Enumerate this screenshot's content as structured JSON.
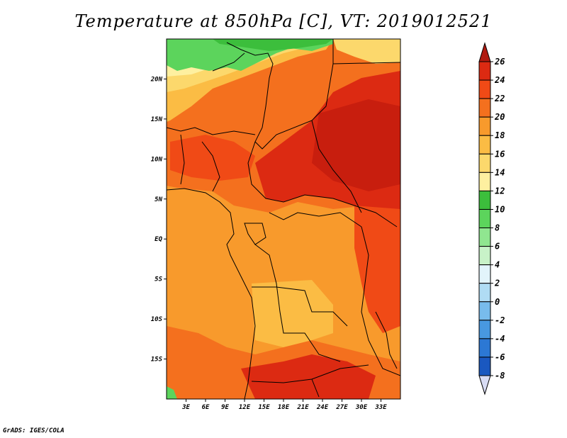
{
  "title": "Temperature at 850hPa [C], VT: 2019012521",
  "credit": "GrADS: IGES/COLA",
  "map": {
    "lon_range": [
      0,
      36
    ],
    "lat_range": [
      -20,
      25
    ],
    "lat_ticks": [
      {
        "value": 20,
        "label": "20N"
      },
      {
        "value": 15,
        "label": "15N"
      },
      {
        "value": 10,
        "label": "10N"
      },
      {
        "value": 5,
        "label": "5N"
      },
      {
        "value": 0,
        "label": "EQ"
      },
      {
        "value": -5,
        "label": "5S"
      },
      {
        "value": -10,
        "label": "10S"
      },
      {
        "value": -15,
        "label": "15S"
      }
    ],
    "lon_ticks": [
      {
        "value": 3,
        "label": "3E"
      },
      {
        "value": 6,
        "label": "6E"
      },
      {
        "value": 9,
        "label": "9E"
      },
      {
        "value": 12,
        "label": "12E"
      },
      {
        "value": 15,
        "label": "15E"
      },
      {
        "value": 18,
        "label": "18E"
      },
      {
        "value": 21,
        "label": "21E"
      },
      {
        "value": 24,
        "label": "24E"
      },
      {
        "value": 27,
        "label": "27E"
      },
      {
        "value": 30,
        "label": "30E"
      },
      {
        "value": 33,
        "label": "33E"
      }
    ]
  },
  "colorbar": {
    "labels": [
      "26",
      "24",
      "22",
      "20",
      "18",
      "16",
      "14",
      "12",
      "10",
      "8",
      "6",
      "4",
      "2",
      "0",
      "-2",
      "-4",
      "-6",
      "-8"
    ],
    "colors": [
      "#b01a10",
      "#dc2a12",
      "#f04a16",
      "#f4701e",
      "#f89a2c",
      "#fbbc44",
      "#fcd86c",
      "#fef0a0",
      "#3cbe3c",
      "#5cd45c",
      "#90e690",
      "#c8f2c8",
      "#e2f4fb",
      "#b0dcf4",
      "#78bcec",
      "#4898e0",
      "#2c78d4",
      "#1a58c0",
      "#0c38a0",
      "#0a1670",
      "#d8dcf4"
    ]
  }
}
